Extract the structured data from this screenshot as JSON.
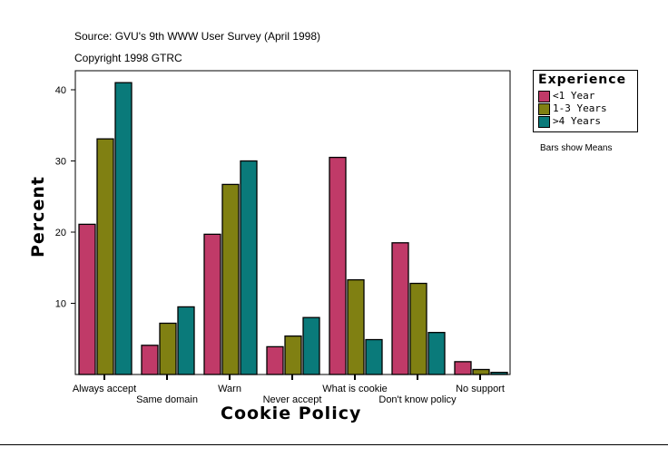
{
  "chart_data": {
    "type": "bar",
    "source": "Source: GVU's 9th WWW User Survey (April 1998)",
    "copyright": "Copyright 1998 GTRC",
    "xlabel": "Cookie Policy",
    "ylabel": "Percent",
    "ylim": [
      0,
      42
    ],
    "yticks": [
      10,
      20,
      30,
      40
    ],
    "grid": false,
    "legend_title": "Experience",
    "legend_placement": "right",
    "note": "Bars show Means",
    "categories": [
      "Always accept",
      "Same domain",
      "Warn",
      "Never accept",
      "What is cookie",
      "Don't know policy",
      "No support"
    ],
    "series": [
      {
        "name": "<1 Year",
        "color": "#C03A68",
        "values": [
          21.1,
          4.1,
          19.7,
          3.9,
          30.5,
          18.5,
          1.8
        ]
      },
      {
        "name": "1-3 Years",
        "color": "#808012",
        "values": [
          33.1,
          7.2,
          26.7,
          5.4,
          13.3,
          12.8,
          0.7
        ]
      },
      {
        "name": ">4 Years",
        "color": "#0A7A7A",
        "values": [
          41.0,
          9.5,
          30.0,
          8.0,
          4.9,
          5.9,
          0.3
        ]
      }
    ]
  }
}
